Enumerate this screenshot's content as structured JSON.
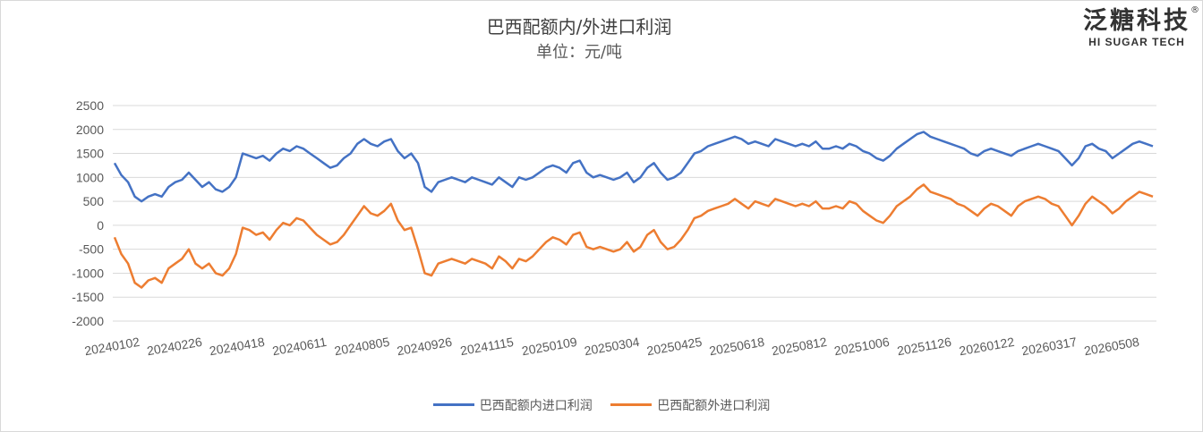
{
  "chart_data": {
    "type": "line",
    "title": "巴西配额内/外进口利润",
    "subtitle": "单位：元/吨",
    "ylim": [
      -2000,
      2500
    ],
    "yticks": [
      2500,
      2000,
      1500,
      1000,
      500,
      0,
      -500,
      -1000,
      -1500,
      -2000
    ],
    "x_tick_labels": [
      "20240102",
      "20240226",
      "20240418",
      "20240611",
      "20240805",
      "20240926",
      "20241115",
      "20250109",
      "20250304",
      "20250425",
      "20250618",
      "20250812",
      "20251006",
      "20251126",
      "20260122",
      "20260317",
      "20260508"
    ],
    "grid": "horizontal",
    "legend": "bottom",
    "series": [
      {
        "name": "巴西配额内进口利润",
        "color": "#4472C4",
        "values": [
          1300,
          1050,
          900,
          600,
          500,
          600,
          650,
          600,
          800,
          900,
          950,
          1100,
          950,
          800,
          900,
          750,
          700,
          800,
          1000,
          1500,
          1450,
          1400,
          1450,
          1350,
          1500,
          1600,
          1550,
          1650,
          1600,
          1500,
          1400,
          1300,
          1200,
          1250,
          1400,
          1500,
          1700,
          1800,
          1700,
          1650,
          1750,
          1800,
          1550,
          1400,
          1500,
          1300,
          800,
          700,
          900,
          950,
          1000,
          950,
          900,
          1000,
          950,
          900,
          850,
          1000,
          900,
          800,
          1000,
          950,
          1000,
          1100,
          1200,
          1250,
          1200,
          1100,
          1300,
          1350,
          1100,
          1000,
          1050,
          1000,
          950,
          1000,
          1100,
          900,
          1000,
          1200,
          1300,
          1100,
          950,
          1000,
          1100,
          1300,
          1500,
          1550,
          1650,
          1700,
          1750,
          1800,
          1850,
          1800,
          1700,
          1750,
          1700,
          1650,
          1800,
          1750,
          1700,
          1650,
          1700,
          1650,
          1750,
          1600,
          1600,
          1650,
          1600,
          1700,
          1650,
          1550,
          1500,
          1400,
          1350,
          1450,
          1600,
          1700,
          1800,
          1900,
          1950,
          1850,
          1800,
          1750,
          1700,
          1650,
          1600,
          1500,
          1450,
          1550,
          1600,
          1550,
          1500,
          1450,
          1550,
          1600,
          1650,
          1700,
          1650,
          1600,
          1550,
          1400,
          1250,
          1400,
          1650,
          1700,
          1600,
          1550,
          1400,
          1500,
          1600,
          1700,
          1750,
          1700,
          1650
        ]
      },
      {
        "name": "巴西配额外进口利润",
        "color": "#ED7D31",
        "values": [
          -250,
          -600,
          -800,
          -1200,
          -1300,
          -1150,
          -1100,
          -1200,
          -900,
          -800,
          -700,
          -500,
          -800,
          -900,
          -800,
          -1000,
          -1050,
          -900,
          -600,
          -50,
          -100,
          -200,
          -150,
          -300,
          -100,
          50,
          0,
          150,
          100,
          -50,
          -200,
          -300,
          -400,
          -350,
          -200,
          0,
          200,
          400,
          250,
          200,
          300,
          450,
          100,
          -100,
          -50,
          -500,
          -1000,
          -1050,
          -800,
          -750,
          -700,
          -750,
          -800,
          -700,
          -750,
          -800,
          -900,
          -650,
          -750,
          -900,
          -700,
          -750,
          -650,
          -500,
          -350,
          -250,
          -300,
          -400,
          -200,
          -150,
          -450,
          -500,
          -450,
          -500,
          -550,
          -500,
          -350,
          -550,
          -450,
          -200,
          -100,
          -350,
          -500,
          -450,
          -300,
          -100,
          150,
          200,
          300,
          350,
          400,
          450,
          550,
          450,
          350,
          500,
          450,
          400,
          550,
          500,
          450,
          400,
          450,
          400,
          500,
          350,
          350,
          400,
          350,
          500,
          450,
          300,
          200,
          100,
          50,
          200,
          400,
          500,
          600,
          750,
          850,
          700,
          650,
          600,
          550,
          450,
          400,
          300,
          200,
          350,
          450,
          400,
          300,
          200,
          400,
          500,
          550,
          600,
          550,
          450,
          400,
          200,
          0,
          200,
          450,
          600,
          500,
          400,
          250,
          350,
          500,
          600,
          700,
          650,
          600
        ]
      }
    ]
  },
  "logo": {
    "cn": "泛糖科技",
    "en": "HI SUGAR TECH",
    "reg": "®"
  }
}
